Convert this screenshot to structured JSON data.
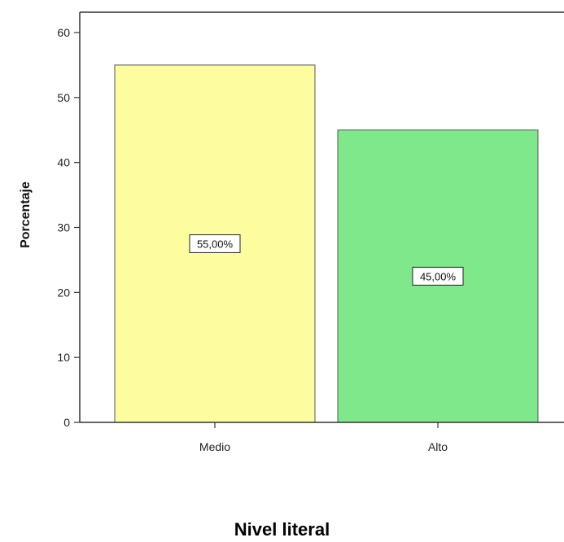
{
  "chart_data": {
    "type": "bar",
    "categories": [
      "Medio",
      "Alto"
    ],
    "values": [
      55,
      45
    ],
    "data_labels": [
      "55,00%",
      "45,00%"
    ],
    "title": "Nivel literal",
    "xlabel": "",
    "ylabel": "Porcentaje",
    "ylim": [
      0,
      60
    ],
    "yticks": [
      0,
      10,
      20,
      30,
      40,
      50,
      60
    ],
    "grid": false,
    "legend": "none",
    "colors": [
      "#fdfda0",
      "#7ee88a"
    ],
    "bar_stroke": "#555555",
    "axis_color": "#333333"
  }
}
